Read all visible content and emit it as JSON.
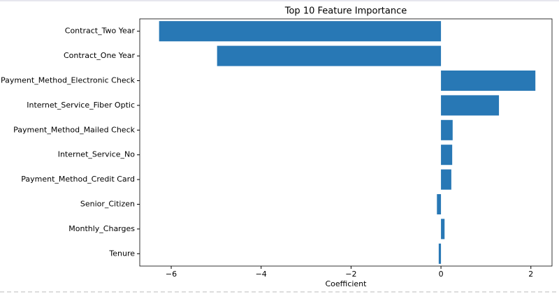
{
  "chart_data": {
    "type": "barh",
    "title": "Top 10 Feature Importance",
    "xlabel": "Coefficient",
    "categories": [
      "Contract_Two Year",
      "Contract_One Year",
      "Payment_Method_Electronic Check",
      "Internet_Service_Fiber Optic",
      "Payment_Method_Mailed Check",
      "Internet_Service_No",
      "Payment_Method_Credit Card",
      "Senior_Citizen",
      "Monthly_Charges",
      "Tenure"
    ],
    "values": [
      -6.27,
      -4.98,
      2.1,
      1.29,
      0.26,
      0.25,
      0.23,
      -0.09,
      0.08,
      -0.05
    ],
    "color": "#2878b5",
    "xlim": [
      -6.7,
      2.47
    ],
    "xticks": [
      {
        "value": -6,
        "label": "−6"
      },
      {
        "value": -4,
        "label": "−4"
      },
      {
        "value": -2,
        "label": "−2"
      },
      0,
      2
    ]
  }
}
